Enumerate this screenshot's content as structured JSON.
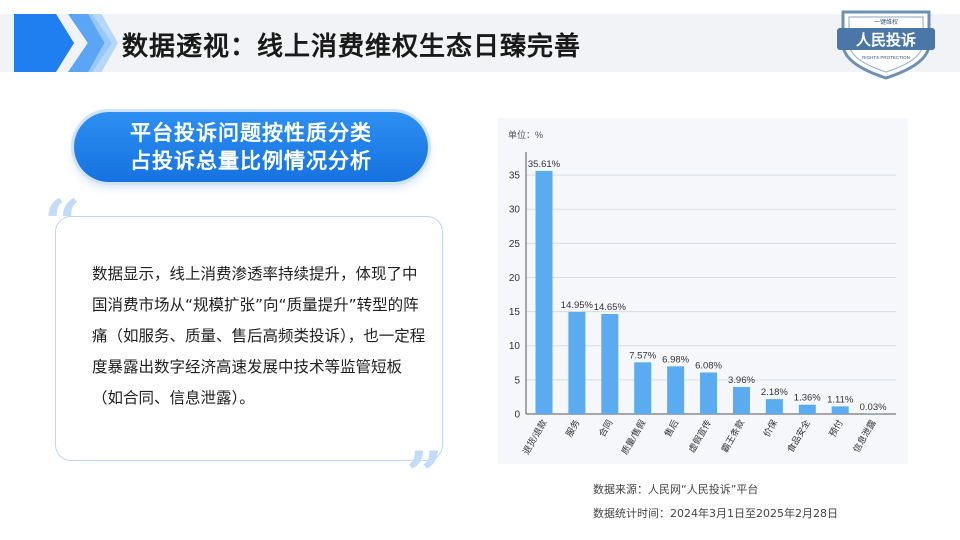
{
  "header": {
    "title": "数据透视：线上消费维权生态日臻完善"
  },
  "logo": {
    "small_text": "一键维权",
    "main_text": "人民投诉",
    "sub_text": "RIGHTS PROTECTION"
  },
  "pill": {
    "line1": "平台投诉问题按性质分类",
    "line2": "占投诉总量比例情况分析"
  },
  "card": {
    "body": "数据显示，线上消费渗透率持续提升，体现了中国消费市场从“规模扩张”向“质量提升”转型的阵痛（如服务、质量、售后高频类投诉），也一定程度暴露出数字经济高速发展中技术等监管短板（如合同、信息泄露）。"
  },
  "chart_data": {
    "type": "bar",
    "unit_label": "单位：%",
    "categories": [
      "退货/退款",
      "服务",
      "合同",
      "质量/售假",
      "售后",
      "虚假宣传",
      "霸王条款",
      "价保",
      "食品安全",
      "预付",
      "信息泄露"
    ],
    "values": [
      35.61,
      14.95,
      14.65,
      7.57,
      6.98,
      6.08,
      3.96,
      2.18,
      1.36,
      1.11,
      0.03
    ],
    "value_labels": [
      "35.61%",
      "14.95%",
      "14.65%",
      "7.57%",
      "6.98%",
      "6.08%",
      "3.96%",
      "2.18%",
      "1.36%",
      "1.11%",
      "0.03%"
    ],
    "yticks": [
      "0",
      "5",
      "10",
      "15",
      "20",
      "25",
      "30",
      "35"
    ],
    "ylim": [
      0,
      37.5
    ],
    "grid": true,
    "bar_color": "#5aabf0"
  },
  "footer": {
    "source": "数据来源：人民网“人民投诉”平台",
    "period": "数据统计时间：2024年3月1日至2025年2月28日"
  }
}
